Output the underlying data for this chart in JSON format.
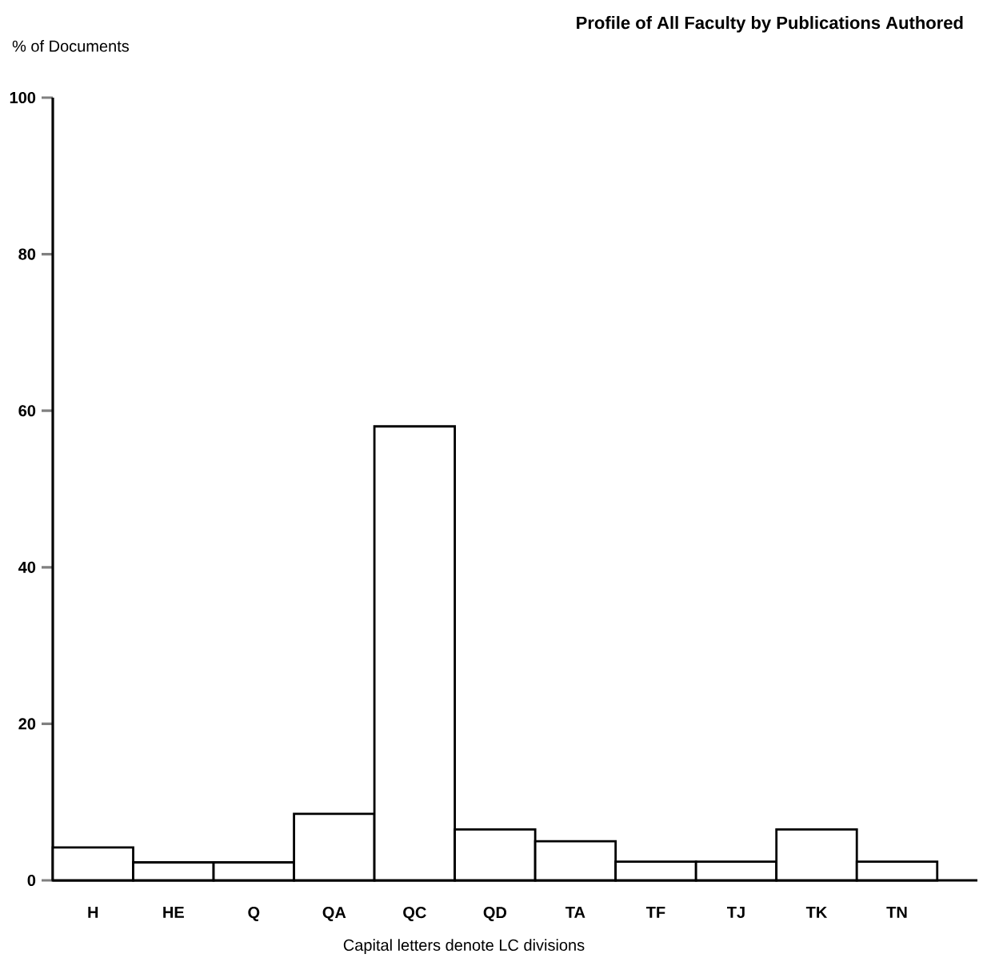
{
  "chart_data": {
    "type": "bar",
    "title": "Profile of All Faculty by Publications Authored",
    "ylabel": "% of Documents",
    "xlabel": "Capital letters denote LC divisions",
    "categories": [
      "H",
      "HE",
      "Q",
      "QA",
      "QC",
      "QD",
      "TA",
      "TF",
      "TJ",
      "TK",
      "TN"
    ],
    "values": [
      4.2,
      2.3,
      2.3,
      8.5,
      58,
      6.5,
      5.0,
      2.4,
      2.4,
      6.5,
      2.4
    ],
    "color": "#ffffff",
    "ylim": [
      0,
      100
    ],
    "yticks": [
      0,
      20,
      40,
      60,
      80,
      100
    ],
    "grid": false
  }
}
